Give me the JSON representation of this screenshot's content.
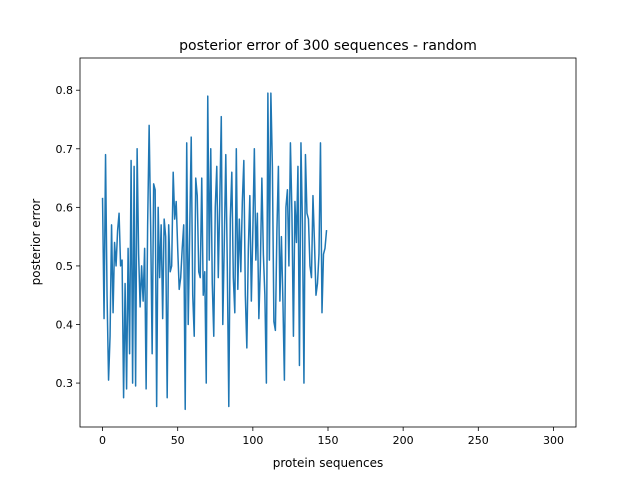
{
  "chart_data": {
    "type": "line",
    "title": "posterior error of 300 sequences - random",
    "xlabel": "protein  sequences",
    "ylabel": "posterior error",
    "xlim": [
      -15,
      315
    ],
    "ylim": [
      0.225,
      0.855
    ],
    "xticks": [
      0,
      50,
      100,
      150,
      200,
      250,
      300
    ],
    "yticks": [
      0.3,
      0.4,
      0.5,
      0.6,
      0.7,
      0.8
    ],
    "ytick_labels": [
      "0.3",
      "0.4",
      "0.5",
      "0.6",
      "0.7",
      "0.8"
    ],
    "grid": false,
    "legend": "none",
    "series": [
      {
        "color": "#1f77b4",
        "x_start": 0,
        "x_step": 1,
        "values": [
          0.615,
          0.41,
          0.69,
          0.45,
          0.305,
          0.38,
          0.57,
          0.42,
          0.54,
          0.5,
          0.56,
          0.59,
          0.5,
          0.51,
          0.275,
          0.47,
          0.29,
          0.53,
          0.35,
          0.68,
          0.3,
          0.67,
          0.295,
          0.7,
          0.52,
          0.43,
          0.5,
          0.44,
          0.53,
          0.29,
          0.57,
          0.74,
          0.57,
          0.35,
          0.64,
          0.63,
          0.26,
          0.6,
          0.48,
          0.57,
          0.41,
          0.58,
          0.55,
          0.275,
          0.57,
          0.49,
          0.5,
          0.66,
          0.58,
          0.61,
          0.53,
          0.46,
          0.48,
          0.53,
          0.57,
          0.255,
          0.71,
          0.4,
          0.56,
          0.72,
          0.45,
          0.38,
          0.65,
          0.62,
          0.49,
          0.48,
          0.65,
          0.45,
          0.49,
          0.3,
          0.79,
          0.51,
          0.7,
          0.47,
          0.38,
          0.6,
          0.67,
          0.48,
          0.61,
          0.755,
          0.4,
          0.54,
          0.69,
          0.5,
          0.26,
          0.58,
          0.66,
          0.48,
          0.42,
          0.7,
          0.46,
          0.58,
          0.49,
          0.61,
          0.68,
          0.45,
          0.36,
          0.53,
          0.62,
          0.44,
          0.56,
          0.7,
          0.51,
          0.59,
          0.41,
          0.5,
          0.65,
          0.52,
          0.45,
          0.3,
          0.795,
          0.51,
          0.795,
          0.67,
          0.405,
          0.39,
          0.56,
          0.67,
          0.44,
          0.55,
          0.44,
          0.305,
          0.6,
          0.63,
          0.5,
          0.71,
          0.59,
          0.38,
          0.61,
          0.54,
          0.67,
          0.33,
          0.71,
          0.57,
          0.3,
          0.69,
          0.59,
          0.58,
          0.5,
          0.48,
          0.62,
          0.54,
          0.45,
          0.47,
          0.52,
          0.71,
          0.42,
          0.52,
          0.53,
          0.56
        ]
      }
    ]
  }
}
